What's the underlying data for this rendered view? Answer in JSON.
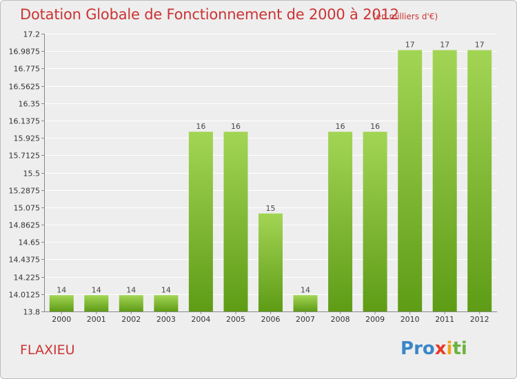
{
  "header": {
    "title": "Dotation Globale de Fonctionnement de 2000 à 2012",
    "subtitle": "(en milliers d'€)"
  },
  "footer": {
    "commune": "FLAXIEU",
    "logo": "Proxiti"
  },
  "colors": {
    "title": "#cc3333",
    "bar_top": "#9fd24e",
    "bar_bottom": "#5f9e18",
    "background": "#eeeeee",
    "grid": "#ffffff"
  },
  "chart_data": {
    "type": "bar",
    "title": "Dotation Globale de Fonctionnement de 2000 à 2012",
    "subtitle": "(en milliers d'€)",
    "categories": [
      "2000",
      "2001",
      "2002",
      "2003",
      "2004",
      "2005",
      "2006",
      "2007",
      "2008",
      "2009",
      "2010",
      "2011",
      "2012"
    ],
    "values": [
      14,
      14,
      14,
      14,
      16,
      16,
      15,
      14,
      16,
      16,
      17,
      17,
      17
    ],
    "data_labels": [
      "14",
      "14",
      "14",
      "14",
      "16",
      "16",
      "15",
      "14",
      "16",
      "16",
      "17",
      "17",
      "17"
    ],
    "ylim": [
      13.8,
      17.2
    ],
    "yticks": [
      "13.8",
      "14.0125",
      "14.225",
      "14.4375",
      "14.65",
      "14.8625",
      "15.075",
      "15.2875",
      "15.5",
      "15.7125",
      "15.925",
      "16.1375",
      "16.35",
      "16.5625",
      "16.775",
      "16.9875",
      "17.2"
    ],
    "ytick_values": [
      13.8,
      14.0125,
      14.225,
      14.4375,
      14.65,
      14.8625,
      15.075,
      15.2875,
      15.5,
      15.7125,
      15.925,
      16.1375,
      16.35,
      16.5625,
      16.775,
      16.9875,
      17.2
    ],
    "grid": true,
    "legend": "none"
  }
}
